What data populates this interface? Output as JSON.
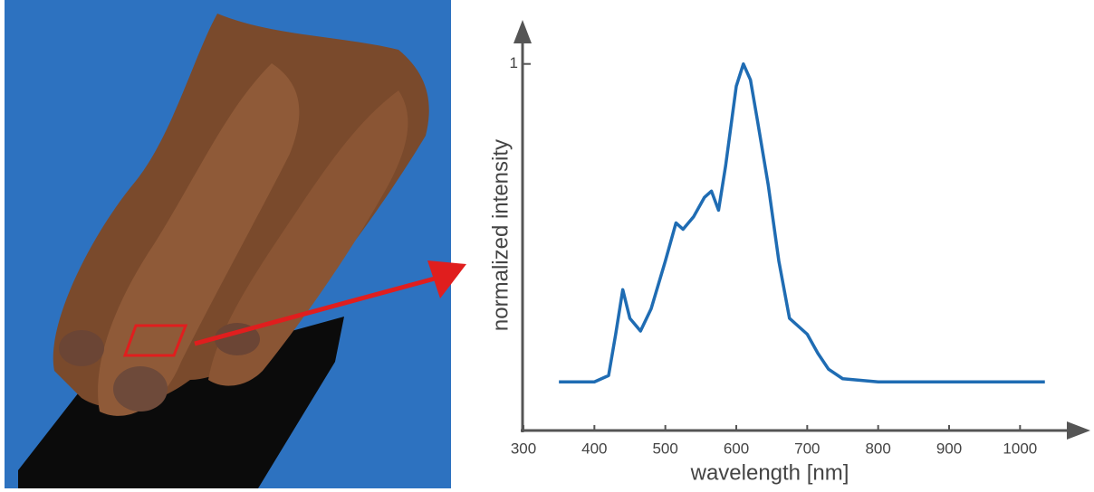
{
  "chart_data": {
    "type": "line",
    "x_label": "wavelength [nm]",
    "y_label": "normalized intensity",
    "x": [
      350,
      400,
      420,
      430,
      440,
      450,
      465,
      480,
      500,
      515,
      525,
      540,
      555,
      565,
      575,
      585,
      600,
      610,
      620,
      630,
      645,
      660,
      675,
      690,
      700,
      715,
      730,
      750,
      800,
      900,
      1000,
      1035
    ],
    "series": [
      {
        "color": "#1f6cb3",
        "values": [
          0,
          0,
          0.02,
          0.15,
          0.29,
          0.2,
          0.16,
          0.23,
          0.38,
          0.5,
          0.48,
          0.52,
          0.58,
          0.6,
          0.54,
          0.68,
          0.93,
          1.0,
          0.95,
          0.82,
          0.62,
          0.38,
          0.2,
          0.17,
          0.15,
          0.09,
          0.04,
          0.01,
          0,
          0,
          0,
          0
        ]
      }
    ],
    "xlim": [
      300,
      1080
    ],
    "xticks": [
      300,
      400,
      500,
      600,
      700,
      800,
      900,
      1000
    ],
    "ylim": [
      -0.15,
      1.13
    ],
    "yticks": [
      1
    ]
  }
}
